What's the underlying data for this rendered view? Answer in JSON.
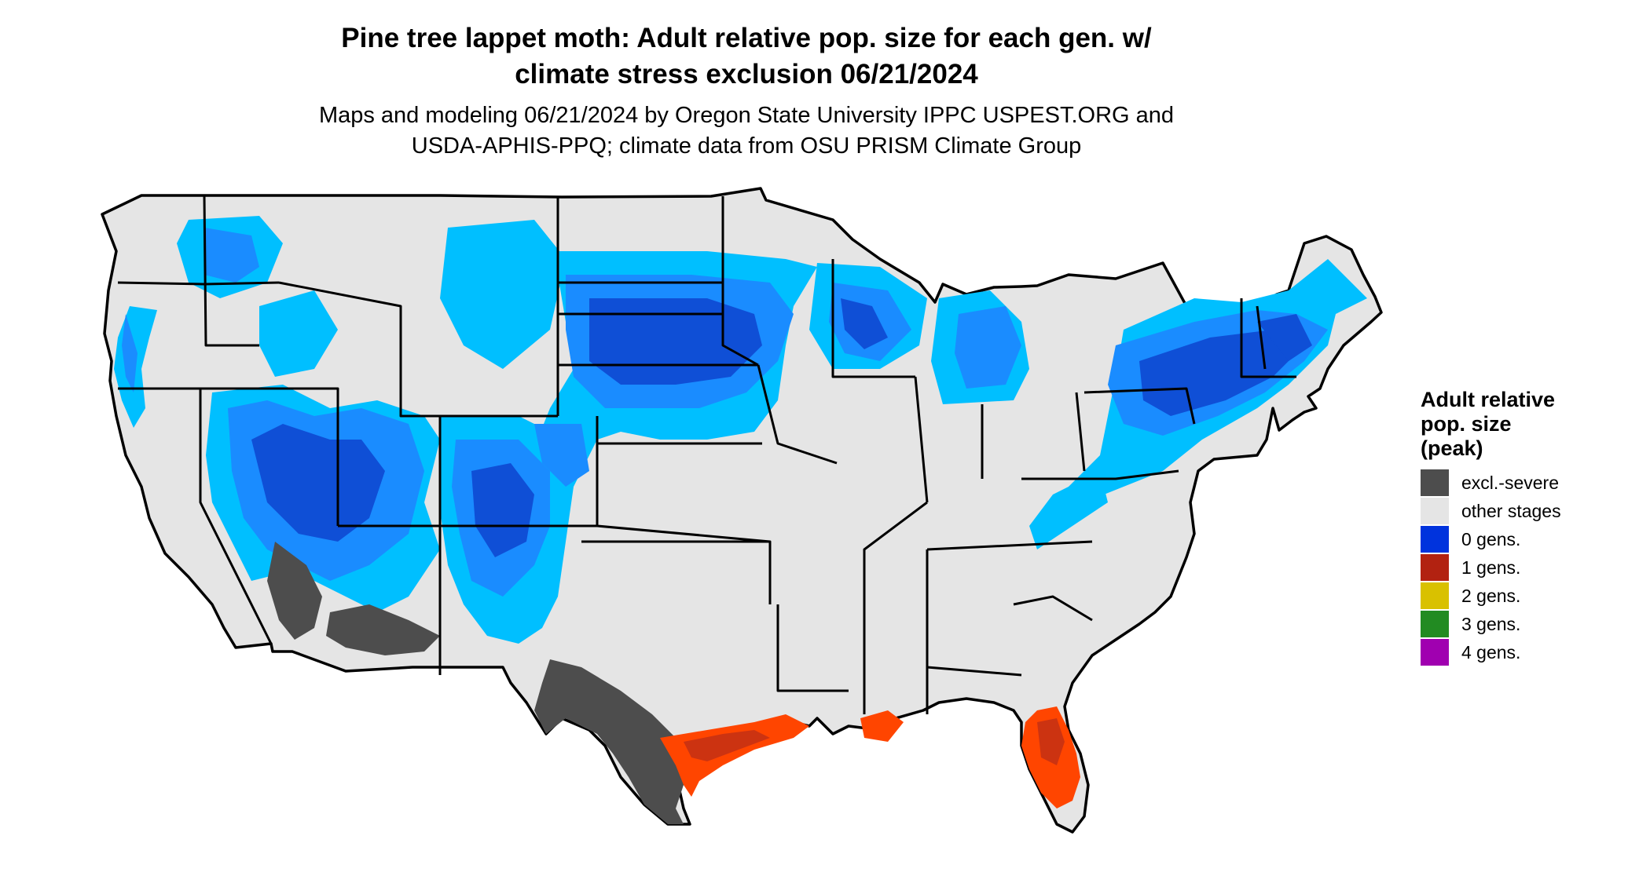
{
  "title": {
    "line1": "Pine tree lappet moth: Adult relative pop. size for each gen. w/",
    "line2": "climate stress exclusion 06/21/2024"
  },
  "subtitle": {
    "line1": "Maps and modeling 06/21/2024 by Oregon State University IPPC USPEST.ORG and",
    "line2": "USDA-APHIS-PPQ; climate data from OSU PRISM Climate Group"
  },
  "legend": {
    "title_line1": "Adult relative",
    "title_line2": "pop. size",
    "title_line3": "(peak)",
    "items": [
      {
        "label": "excl.-severe",
        "color": "#4d4d4d"
      },
      {
        "label": "other stages",
        "color": "#e5e5e5"
      },
      {
        "label": "0 gens.",
        "color": "#0033dd"
      },
      {
        "label": "1 gens.",
        "color": "#b22211"
      },
      {
        "label": "2 gens.",
        "color": "#d9c100"
      },
      {
        "label": "3 gens.",
        "color": "#228b22"
      },
      {
        "label": "4 gens.",
        "color": "#a000b0"
      }
    ]
  },
  "map_colors": {
    "base": "#e5e5e5",
    "light_blue": "#00bfff",
    "mid_blue": "#1a8cff",
    "dark_blue": "#0f4fd6",
    "excl_severe": "#4d4d4d",
    "one_gen": "#ff4500",
    "one_gen_dark": "#cc3311",
    "border": "#000000"
  }
}
